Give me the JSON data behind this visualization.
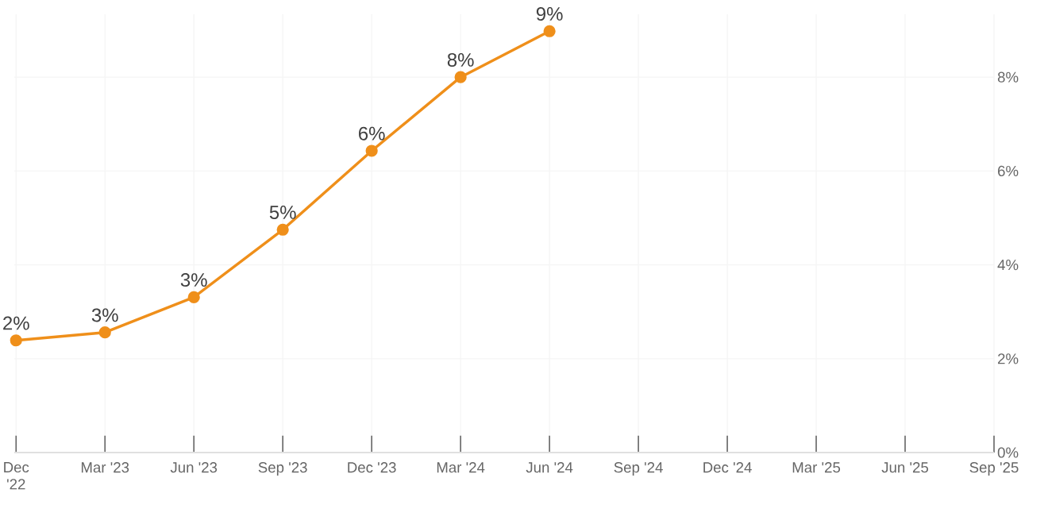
{
  "chart_data": {
    "type": "line",
    "categories": [
      "Dec '22",
      "Mar '23",
      "Jun '23",
      "Sep '23",
      "Dec '23",
      "Mar '24",
      "Jun '24",
      "Sep '24",
      "Dec '24",
      "Mar '25",
      "Jun '25",
      "Sep '25"
    ],
    "series": [
      {
        "color": "#ef8f1a",
        "values": [
          2.39,
          2.56,
          3.31,
          4.75,
          6.43,
          8.0,
          8.98,
          null,
          null,
          null,
          null,
          null
        ],
        "value_labels": [
          "2%",
          "3%",
          "3%",
          "5%",
          "6%",
          "8%",
          "9%",
          null,
          null,
          null,
          null,
          null
        ]
      }
    ],
    "ylim": [
      0,
      9.34
    ],
    "yticks": [
      {
        "value": 0,
        "label": "0%"
      },
      {
        "value": 2,
        "label": "2%"
      },
      {
        "value": 4,
        "label": "4%"
      },
      {
        "value": 6,
        "label": "6%"
      },
      {
        "value": 8,
        "label": "8%"
      }
    ],
    "grid": true,
    "marker": "circle",
    "line_style": "solid"
  }
}
